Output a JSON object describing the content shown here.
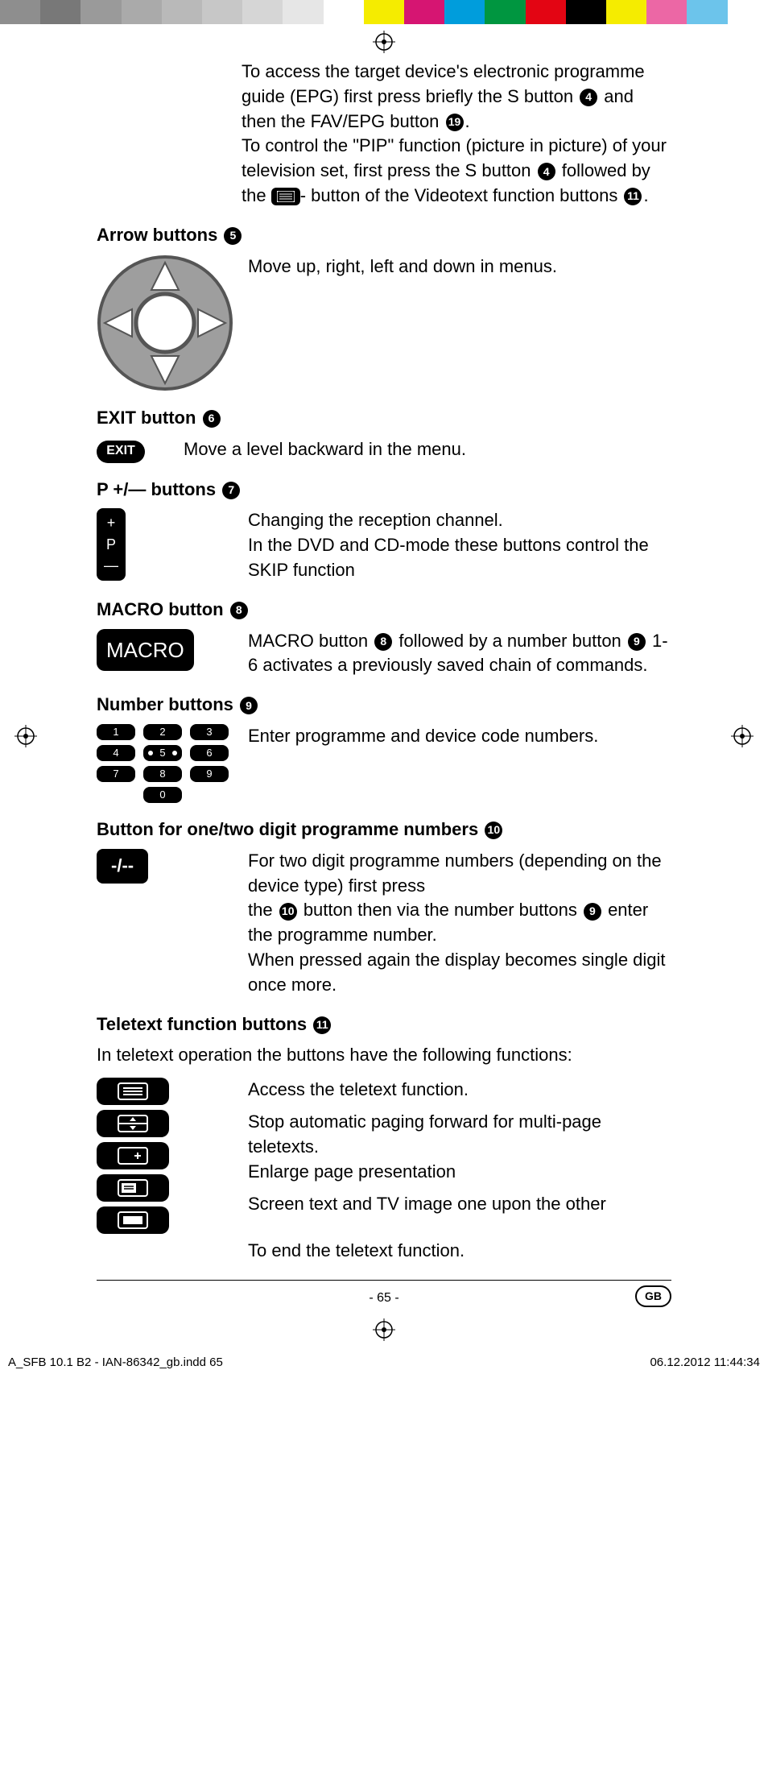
{
  "colorbar": [
    "#8e8e8e",
    "#787878",
    "#9a9a9a",
    "#aaaaaa",
    "#b9b9b9",
    "#c7c7c7",
    "#d6d6d6",
    "#e6e6e6",
    "#ffffff",
    "#f5ec00",
    "#d61572",
    "#009ddc",
    "#009640",
    "#e30513",
    "#000000",
    "#f5ec00",
    "#ec67a5",
    "#6cc4eb",
    "#ffffff"
  ],
  "intro": {
    "p1_a": "To access the target device's electronic programme guide (EPG) first press briefly the S button ",
    "n1": "4",
    "p1_b": " and then the FAV/EPG button ",
    "n2": "19",
    "p1_c": ".",
    "p2_a": "To control the \"PIP\" function (picture in picture) of your television set, first press the S button ",
    "n3": "4",
    "p2_b": " followed by the ",
    "p2_c": "- button of the Videotext function buttons ",
    "n4": "11",
    "p2_d": "."
  },
  "sections": {
    "arrow": {
      "title": "Arrow buttons ",
      "num": "5",
      "desc": "Move up, right, left and down in menus."
    },
    "exit": {
      "title": "EXIT button ",
      "num": "6",
      "label": "EXIT",
      "desc": "Move a level backward in the menu."
    },
    "pbtn": {
      "title": "P +/— buttons ",
      "num": "7",
      "top": "+",
      "mid": "P",
      "bot": "—",
      "d1": "Changing the reception channel.",
      "d2": "In the DVD and CD-mode these buttons control the SKIP function"
    },
    "macro": {
      "title": "MACRO button ",
      "num": "8",
      "label": "MACRO",
      "d_a": "MACRO button ",
      "n1": "8",
      "d_b": " followed by a number button ",
      "n2": "9",
      "d_c": " 1-6 activates a previously saved chain of commands."
    },
    "number": {
      "title": "Number buttons ",
      "num": "9",
      "keys": [
        "1",
        "2",
        "3",
        "4",
        "5",
        "6",
        "7",
        "8",
        "9",
        "",
        "0",
        ""
      ],
      "desc": "Enter programme and device code numbers."
    },
    "digit": {
      "title": "Button for one/two digit programme numbers ",
      "num": "10",
      "label": "-/--",
      "d1": "For two digit programme numbers (depending on the device type) first press",
      "d2_a": "the ",
      "n1": "10",
      "d2_b": " button then via the number buttons ",
      "n2": "9",
      "d2_c": " enter the programme number.",
      "d3": "When pressed again the display becomes single digit once more."
    },
    "ttx": {
      "title": "Teletext function buttons ",
      "num": "11",
      "intro": "In teletext operation the buttons have the following functions:",
      "r1": "Access the teletext function.",
      "r2": "Stop automatic paging forward for multi-page teletexts.",
      "r3": "Enlarge page presentation",
      "r4": "Screen text and TV image one upon the other",
      "r5": "To end the teletext function."
    }
  },
  "footer": {
    "page": "- 65 -",
    "gb": "GB"
  },
  "meta": {
    "file": "A_SFB 10.1 B2 - IAN-86342_gb.indd   65",
    "stamp": "06.12.2012   11:44:34"
  }
}
